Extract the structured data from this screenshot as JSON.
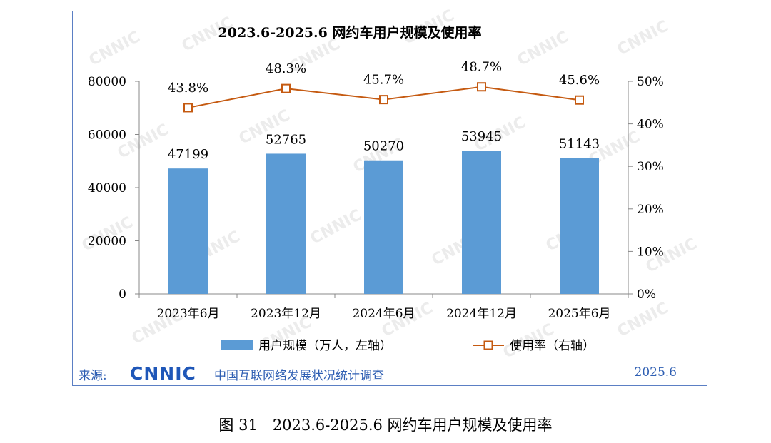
{
  "chart_data": {
    "type": "bar",
    "title": "2023.6-2025.6 网约车用户规模及使用率",
    "categories": [
      "2023年6月",
      "2023年12月",
      "2024年6月",
      "2024年12月",
      "2025年6月"
    ],
    "series": [
      {
        "name": "用户规模（万人，左轴）",
        "type": "bar",
        "axis": "left",
        "values": [
          47199,
          52765,
          50270,
          53945,
          51143
        ]
      },
      {
        "name": "使用率（右轴）",
        "type": "line",
        "axis": "right",
        "values": [
          43.8,
          48.3,
          45.7,
          48.7,
          45.6
        ]
      }
    ],
    "bar_labels": [
      "47199",
      "52765",
      "50270",
      "53945",
      "51143"
    ],
    "line_labels": [
      "43.8%",
      "48.3%",
      "45.7%",
      "48.7%",
      "45.6%"
    ],
    "y_left": {
      "ticks": [
        "0",
        "20000",
        "40000",
        "60000",
        "80000"
      ],
      "ylim": [
        0,
        80000
      ]
    },
    "y_right": {
      "ticks": [
        "0%",
        "10%",
        "20%",
        "30%",
        "40%",
        "50%"
      ],
      "ylim": [
        0,
        50
      ]
    },
    "legend_position": "bottom",
    "grid": false,
    "colors": {
      "bar": "#5b9bd5",
      "line": "#c55a11"
    }
  },
  "source": {
    "label": "来源:",
    "logo_text": "CNNIC",
    "org": "中国互联网络发展状况统计调查",
    "date": "2025.6"
  },
  "caption": "图 31　2023.6-2025.6 网约车用户规模及使用率",
  "watermark": "CNNIC"
}
